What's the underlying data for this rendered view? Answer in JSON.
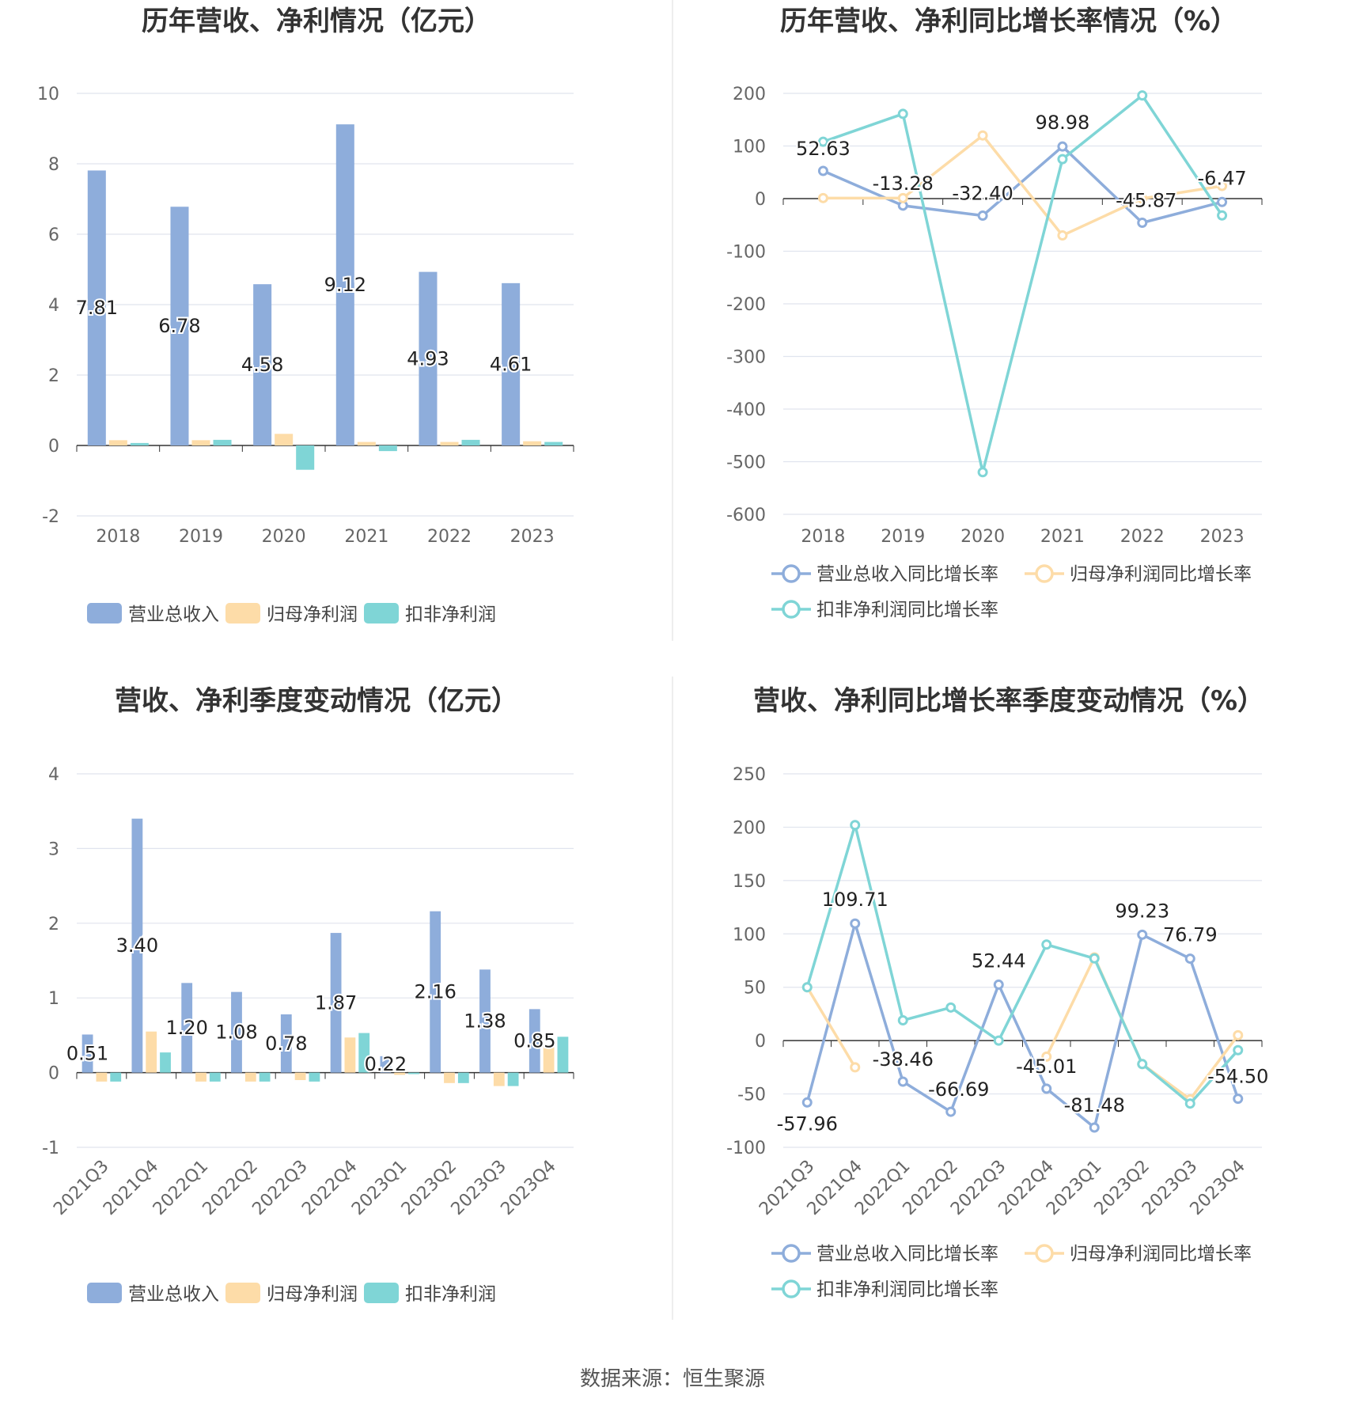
{
  "colors": {
    "revenue": "#8eaddb",
    "net_profit": "#fddca8",
    "deducted_profit": "#7fd5d6",
    "grid": "#e0e4ee",
    "axis": "#333333",
    "text": "#666666",
    "title": "#333333",
    "divider": "#e8e8e8"
  },
  "chart_data": [
    {
      "id": "annual-amounts",
      "type": "bar",
      "title": "历年营收、净利情况（亿元）",
      "categories": [
        "2018",
        "2019",
        "2020",
        "2021",
        "2022",
        "2023"
      ],
      "ylim": [
        -2,
        10
      ],
      "yticks": [
        -2,
        0,
        2,
        4,
        6,
        8,
        10
      ],
      "series": [
        {
          "name": "营业总收入",
          "values": [
            7.81,
            6.78,
            4.58,
            9.12,
            4.93,
            4.61
          ],
          "labels": [
            "7.81",
            "6.78",
            "4.58",
            "9.12",
            "4.93",
            "4.61"
          ]
        },
        {
          "name": "归母净利润",
          "values": [
            0.15,
            0.15,
            0.33,
            0.1,
            0.1,
            0.12
          ]
        },
        {
          "name": "扣非净利润",
          "values": [
            0.07,
            0.16,
            -0.69,
            -0.16,
            0.16,
            0.1
          ]
        }
      ],
      "legend": "bottom"
    },
    {
      "id": "annual-growth",
      "type": "line",
      "title": "历年营收、净利同比增长率情况（%）",
      "categories": [
        "2018",
        "2019",
        "2020",
        "2021",
        "2022",
        "2023"
      ],
      "ylim": [
        -600,
        200
      ],
      "yticks": [
        -600,
        -500,
        -400,
        -300,
        -200,
        -100,
        0,
        100,
        200
      ],
      "series": [
        {
          "name": "营业总收入同比增长率",
          "values": [
            52.63,
            -13.28,
            -32.4,
            98.98,
            -45.87,
            -6.47
          ],
          "labels": [
            "52.63",
            "-13.28",
            "-32.40",
            "98.98",
            "-45.87",
            "-6.47"
          ]
        },
        {
          "name": "归母净利润同比增长率",
          "values": [
            1,
            1,
            120,
            -70,
            0,
            24
          ]
        },
        {
          "name": "扣非净利润同比增长率",
          "values": [
            108,
            161,
            -520,
            75,
            196,
            -32
          ]
        }
      ],
      "legend": "bottom"
    },
    {
      "id": "quarterly-amounts",
      "type": "bar",
      "title": "营收、净利季度变动情况（亿元）",
      "categories": [
        "2021Q3",
        "2021Q4",
        "2022Q1",
        "2022Q2",
        "2022Q3",
        "2022Q4",
        "2023Q1",
        "2023Q2",
        "2023Q3",
        "2023Q4"
      ],
      "ylim": [
        -1,
        4
      ],
      "yticks": [
        -1,
        0,
        1,
        2,
        3,
        4
      ],
      "series": [
        {
          "name": "营业总收入",
          "values": [
            0.51,
            3.4,
            1.2,
            1.08,
            0.78,
            1.87,
            0.22,
            2.16,
            1.38,
            0.85
          ],
          "labels": [
            "0.51",
            "3.40",
            "1.20",
            "1.08",
            "0.78",
            "1.87",
            "0.22",
            "2.16",
            "1.38",
            "0.85"
          ]
        },
        {
          "name": "归母净利润",
          "values": [
            -0.12,
            0.55,
            -0.12,
            -0.12,
            -0.1,
            0.47,
            -0.03,
            -0.14,
            -0.18,
            0.35
          ]
        },
        {
          "name": "扣非净利润",
          "values": [
            -0.12,
            0.27,
            -0.12,
            -0.12,
            -0.12,
            0.53,
            -0.02,
            -0.14,
            -0.18,
            0.48
          ]
        }
      ],
      "legend": "bottom"
    },
    {
      "id": "quarterly-growth",
      "type": "line",
      "title": "营收、净利同比增长率季度变动情况（%）",
      "categories": [
        "2021Q3",
        "2021Q4",
        "2022Q1",
        "2022Q2",
        "2022Q3",
        "2022Q4",
        "2023Q1",
        "2023Q2",
        "2023Q3",
        "2023Q4"
      ],
      "ylim": [
        -100,
        250
      ],
      "yticks": [
        -100,
        -50,
        0,
        50,
        100,
        150,
        200,
        250
      ],
      "series": [
        {
          "name": "营业总收入同比增长率",
          "values": [
            -57.96,
            109.71,
            -38.46,
            -66.69,
            52.44,
            -45.01,
            -81.48,
            99.23,
            76.79,
            -54.5
          ],
          "labels": [
            "-57.96",
            "109.71",
            "-38.46",
            "-66.69",
            "52.44",
            "-45.01",
            "-81.48",
            "99.23",
            "76.79",
            "-54.50"
          ]
        },
        {
          "name": "归母净利润同比增长率",
          "values": [
            50,
            -25,
            null,
            null,
            null,
            -15,
            78,
            -22,
            -55,
            5
          ]
        },
        {
          "name": "扣非净利润同比增长率",
          "values": [
            50,
            202,
            19,
            31,
            0,
            90,
            77,
            -22,
            -59,
            -9
          ]
        }
      ],
      "legend": "bottom"
    }
  ],
  "footer": {
    "source": "数据来源：恒生聚源"
  }
}
